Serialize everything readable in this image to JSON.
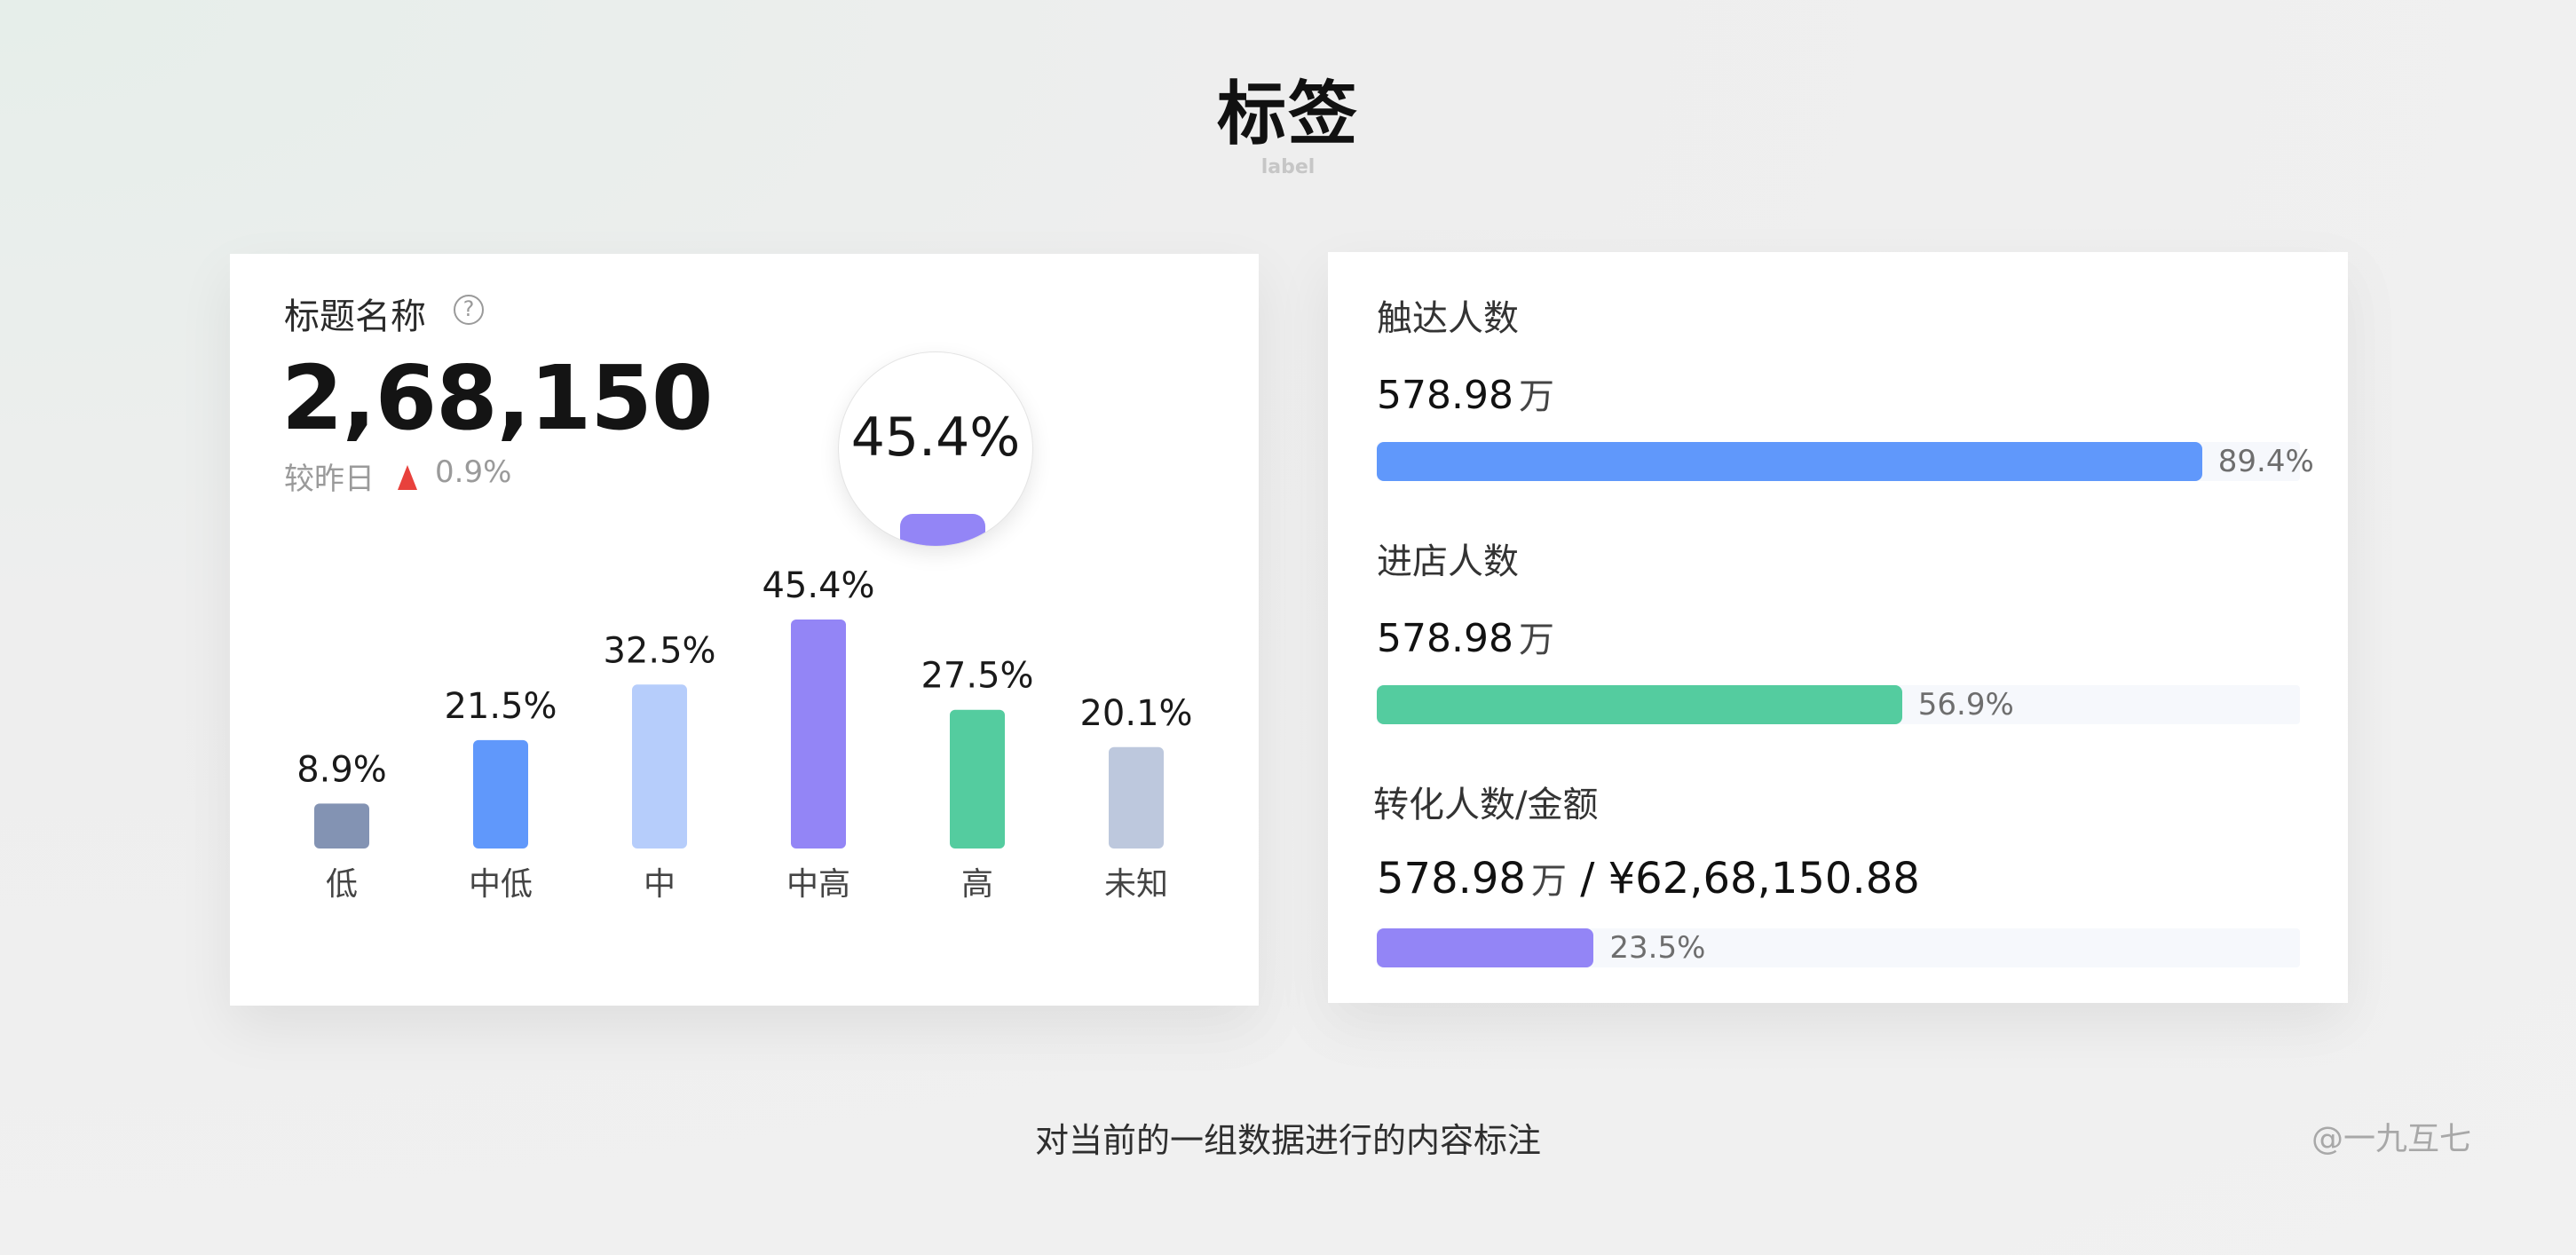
{
  "page": {
    "title": "标签",
    "subtitle": "label",
    "caption": "对当前的一组数据进行的内容标注",
    "credit": "@一九互七"
  },
  "left_card": {
    "title": "标题名称",
    "help_icon": "help-circle-icon",
    "help_glyph": "?",
    "value": "2,68,150",
    "compare_label": "较昨日",
    "compare_value": "0.9%",
    "trend_icon": "trend-up-icon",
    "trend_color": "#e8413c",
    "magnifier_value": "45.4%",
    "magnifier_color": "#9385f6"
  },
  "chart_data": {
    "type": "bar",
    "categories": [
      "低",
      "中低",
      "中",
      "中高",
      "高",
      "未知"
    ],
    "values": [
      8.9,
      21.5,
      32.5,
      45.4,
      27.5,
      20.1
    ],
    "value_labels": [
      "8.9%",
      "21.5%",
      "32.5%",
      "45.4%",
      "27.5%",
      "20.1%"
    ],
    "colors": [
      "#8393b3",
      "#6098fb",
      "#b6cdfb",
      "#9385f6",
      "#54cc9f",
      "#bdc8dd"
    ],
    "ylim": [
      0,
      45.4
    ],
    "grid": false,
    "legend": "none"
  },
  "right_card": {
    "metrics": [
      {
        "label": "触达人数",
        "value": "578.98",
        "unit": "万",
        "percent": 89.4,
        "percent_label": "89.4%",
        "color": "#6098fb"
      },
      {
        "label": "进店人数",
        "value": "578.98",
        "unit": "万",
        "percent": 56.9,
        "percent_label": "56.9%",
        "color": "#54cc9f"
      },
      {
        "label": "转化人数/金额",
        "value": "578.98",
        "unit": "万",
        "separator": " / ",
        "amount": "¥62,68,150.88",
        "percent": 23.5,
        "percent_label": "23.5%",
        "color": "#9385f6"
      }
    ],
    "track_color": "#f6f8fc"
  }
}
